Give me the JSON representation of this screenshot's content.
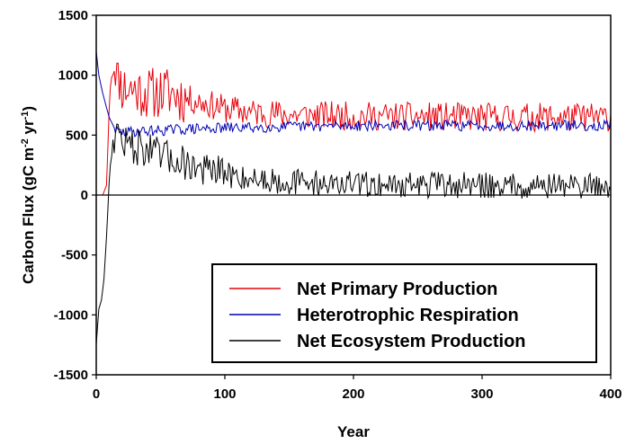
{
  "chart_data": {
    "type": "line",
    "title": "",
    "xlabel": "Year",
    "ylabel_parts": {
      "a": "Carbon Flux (gC m",
      "b": "-2",
      "c": " yr",
      "d": "-1",
      "e": ")"
    },
    "xlim": [
      0,
      400
    ],
    "ylim": [
      -1500,
      1500
    ],
    "x_ticks": [
      0,
      100,
      200,
      300,
      400
    ],
    "y_ticks": [
      -1500,
      -1000,
      -500,
      0,
      500,
      1000,
      1500
    ],
    "x_tick_labels": [
      "0",
      "100",
      "200",
      "300",
      "400"
    ],
    "y_tick_labels": [
      "-1500",
      "-1000",
      "-500",
      "0",
      "500",
      "1000",
      "1500"
    ],
    "grid": false,
    "zero_line": true,
    "legend_position": "bottom-right",
    "series": [
      {
        "name": "Net Primary Production",
        "color": "#e8000b",
        "x": [
          0,
          5,
          8,
          10,
          12,
          15,
          20,
          30,
          40,
          50,
          60,
          70,
          80,
          100,
          120,
          150,
          200,
          250,
          300,
          350,
          400
        ],
        "values": [
          0,
          0,
          80,
          700,
          1100,
          1100,
          900,
          880,
          850,
          860,
          850,
          800,
          780,
          720,
          690,
          670,
          660,
          655,
          650,
          650,
          650
        ]
      },
      {
        "name": "Heterotrophic Respiration",
        "color": "#0000b4",
        "x": [
          0,
          2,
          5,
          10,
          15,
          20,
          30,
          50,
          70,
          100,
          150,
          200,
          300,
          400
        ],
        "values": [
          1200,
          1000,
          850,
          650,
          540,
          520,
          530,
          540,
          550,
          560,
          570,
          580,
          580,
          580
        ]
      },
      {
        "name": "Net Ecosystem Production",
        "color": "#000000",
        "x": [
          0,
          2,
          4,
          6,
          8,
          10,
          12,
          15,
          20,
          30,
          40,
          50,
          60,
          70,
          80,
          100,
          120,
          150,
          200,
          250,
          300,
          350,
          400
        ],
        "values": [
          -1250,
          -950,
          -880,
          -700,
          -350,
          100,
          400,
          550,
          450,
          400,
          380,
          320,
          300,
          270,
          220,
          170,
          140,
          110,
          90,
          85,
          80,
          80,
          80
        ]
      }
    ]
  }
}
